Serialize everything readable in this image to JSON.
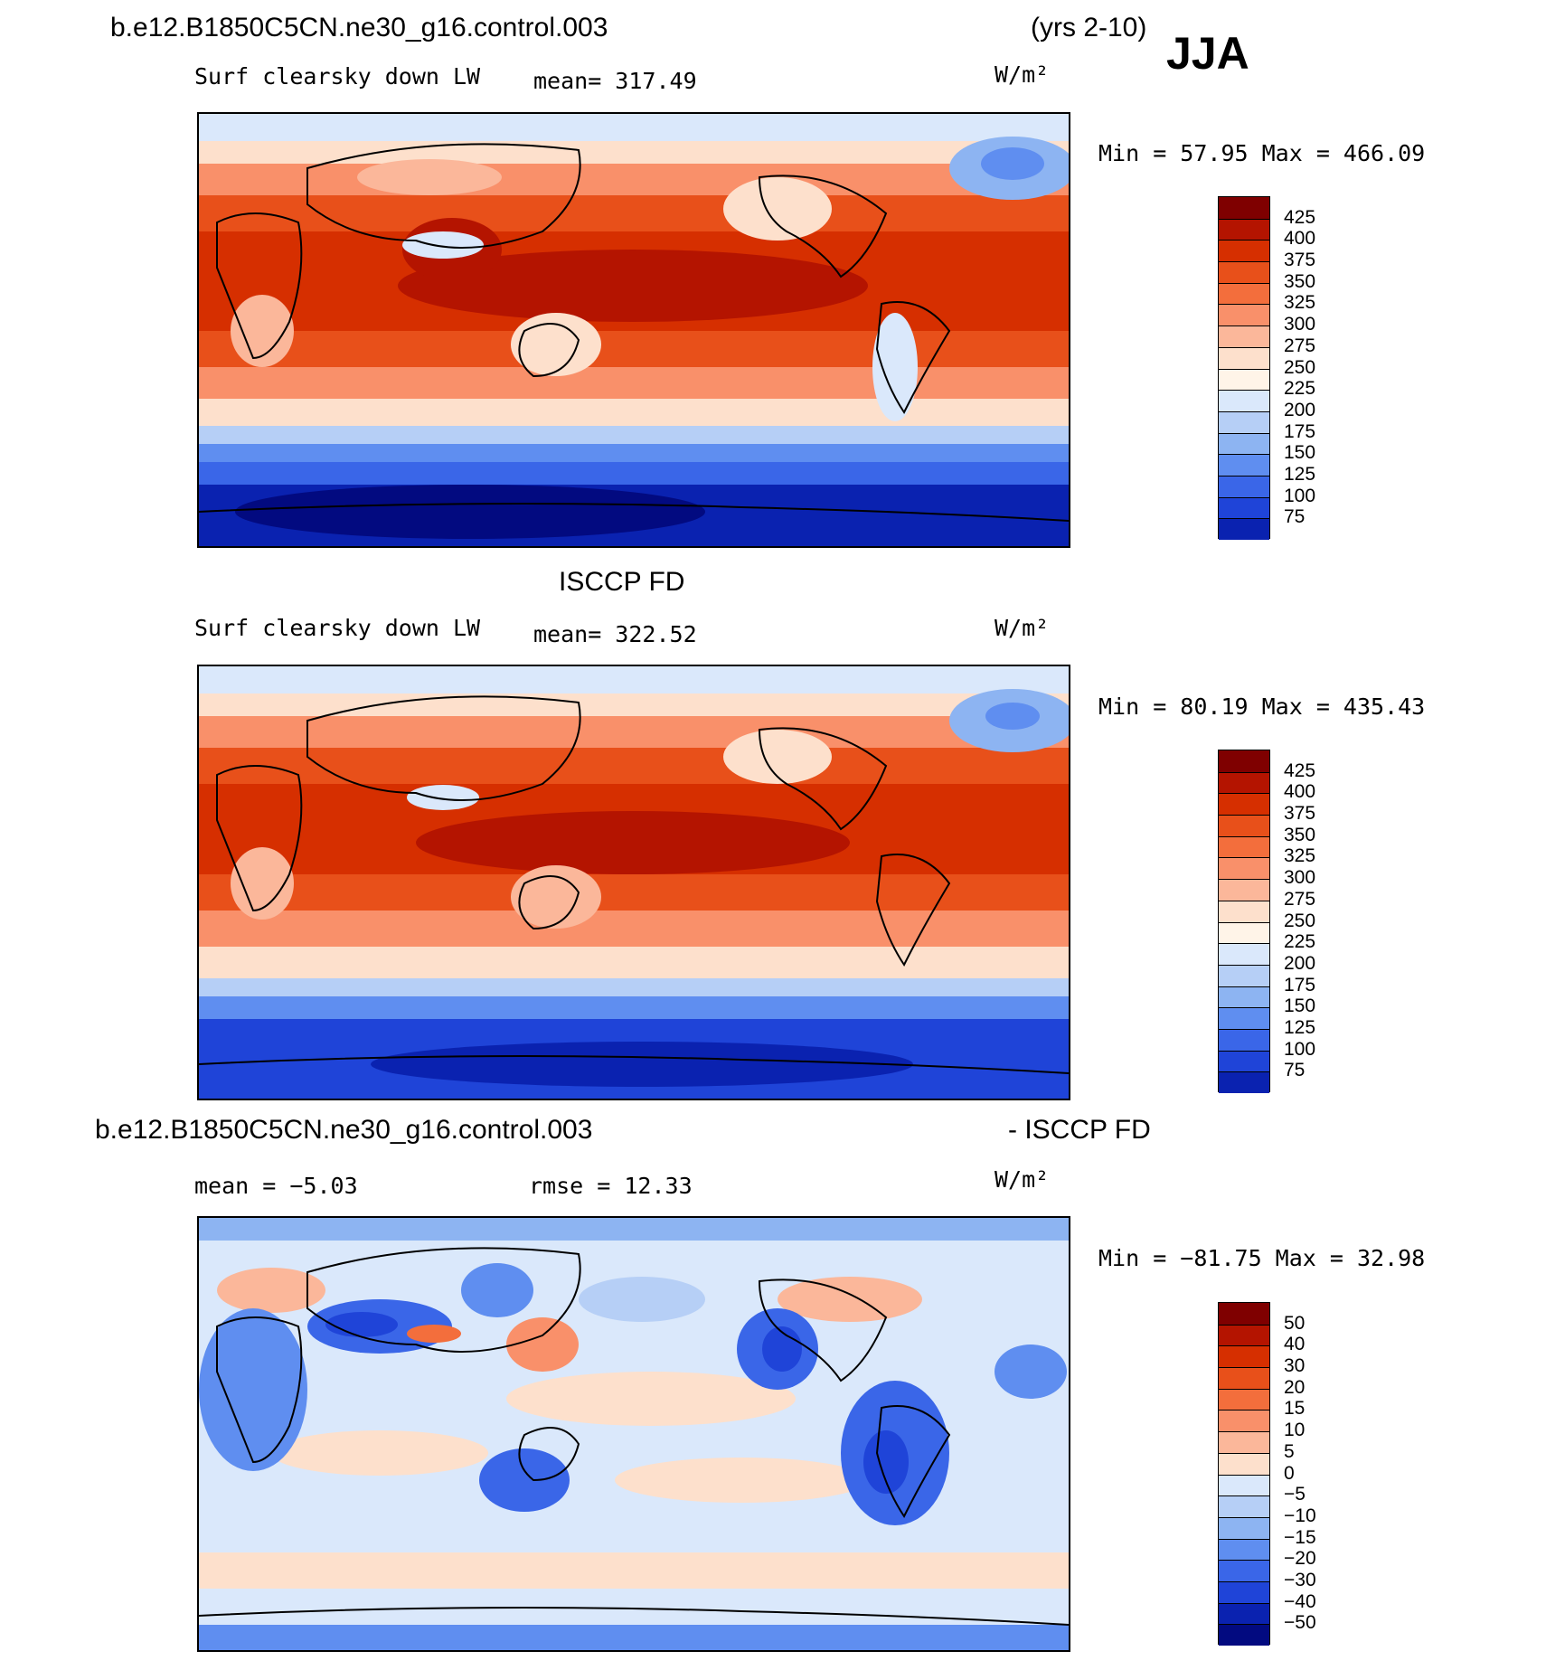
{
  "header": {
    "case_name": "b.e12.B1850C5CN.ne30_g16.control.003",
    "years": "(yrs 2-10)",
    "season": "JJA"
  },
  "panels": [
    {
      "title": "",
      "variable": "Surf clearsky down LW",
      "stat": "mean=  317.49",
      "units": "W/m²",
      "minmax": "Min =   57.95  Max =  466.09",
      "colorbar": {
        "labels": [
          "425",
          "400",
          "375",
          "350",
          "325",
          "300",
          "275",
          "250",
          "225",
          "200",
          "175",
          "150",
          "125",
          "100",
          "75"
        ],
        "colors": [
          "#7f0000",
          "#b41400",
          "#d62f00",
          "#e8501a",
          "#f36e3c",
          "#f9906a",
          "#fbb79a",
          "#fde0cc",
          "#fff4e8",
          "#dae8fb",
          "#b6cff6",
          "#8db4f2",
          "#5f8ef0",
          "#3a66e8",
          "#1f44d8",
          "#0a22b0"
        ]
      }
    },
    {
      "title": "ISCCP FD",
      "variable": "Surf clearsky down LW",
      "stat": "mean=  322.52",
      "units": "W/m²",
      "minmax": "Min =   80.19  Max =  435.43",
      "colorbar": {
        "labels": [
          "425",
          "400",
          "375",
          "350",
          "325",
          "300",
          "275",
          "250",
          "225",
          "200",
          "175",
          "150",
          "125",
          "100",
          "75"
        ],
        "colors": [
          "#7f0000",
          "#b41400",
          "#d62f00",
          "#e8501a",
          "#f36e3c",
          "#f9906a",
          "#fbb79a",
          "#fde0cc",
          "#fff4e8",
          "#dae8fb",
          "#b6cff6",
          "#8db4f2",
          "#5f8ef0",
          "#3a66e8",
          "#1f44d8",
          "#0a22b0"
        ]
      }
    },
    {
      "title_left": "b.e12.B1850C5CN.ne30_g16.control.003",
      "title_right": "- ISCCP FD",
      "stat_mean": "mean =   −5.03",
      "stat_rmse": "rmse =   12.33",
      "units": "W/m²",
      "minmax": "Min = −81.75  Max =   32.98",
      "colorbar": {
        "labels": [
          "50",
          "40",
          "30",
          "20",
          "15",
          "10",
          "5",
          "0",
          "−5",
          "−10",
          "−15",
          "−20",
          "−30",
          "−40",
          "−50"
        ],
        "colors": [
          "#7f0000",
          "#b41400",
          "#d62f00",
          "#e8501a",
          "#f36e3c",
          "#f9906a",
          "#fbb79a",
          "#fde0cc",
          "#dae8fb",
          "#b6cff6",
          "#8db4f2",
          "#5f8ef0",
          "#3a66e8",
          "#1f44d8",
          "#0a22b0",
          "#020a80"
        ]
      }
    }
  ]
}
